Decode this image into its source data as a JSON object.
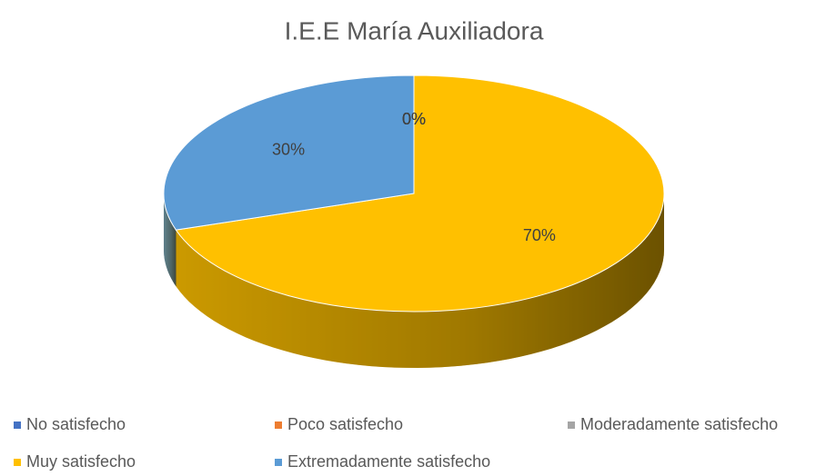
{
  "chart_data": {
    "type": "pie",
    "title": "I.E.E María Auxiliadora",
    "categories": [
      "No satisfecho",
      "Poco satisfecho",
      "Moderadamente satisfecho",
      "Muy satisfecho",
      "Extremadamente satisfecho"
    ],
    "values": [
      0,
      0,
      0,
      70,
      30
    ],
    "value_labels": [
      "0%",
      "0%",
      "0%",
      "70%",
      "30%"
    ],
    "colors": [
      "#4472c4",
      "#ed7d31",
      "#a5a5a5",
      "#ffc000",
      "#5b9bd5"
    ],
    "legend": "bottom"
  }
}
